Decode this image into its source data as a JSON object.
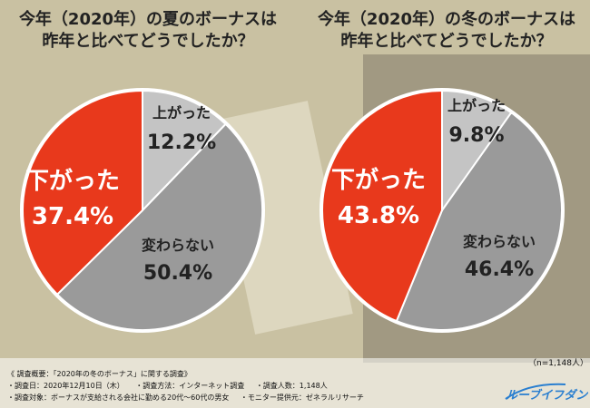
{
  "chart_data": [
    {
      "type": "pie",
      "title_lines": [
        "今年（2020年）の夏のボーナスは",
        "昨年と比べてどうでしたか？"
      ],
      "slices": [
        {
          "label": "上がった",
          "value": 12.2,
          "display": "12.2%",
          "color": "#c4c4c4"
        },
        {
          "label": "変わらない",
          "value": 50.4,
          "display": "50.4%",
          "color": "#9a9a9a"
        },
        {
          "label": "下がった",
          "value": 37.4,
          "display": "37.4%",
          "color": "#e8391c"
        }
      ]
    },
    {
      "type": "pie",
      "title_lines": [
        "今年（2020年）の冬のボーナスは",
        "昨年と比べてどうでしたか？"
      ],
      "slices": [
        {
          "label": "上がった",
          "value": 9.8,
          "display": "9.8%",
          "color": "#c4c4c4"
        },
        {
          "label": "変わらない",
          "value": 46.4,
          "display": "46.4%",
          "color": "#9a9a9a"
        },
        {
          "label": "下がった",
          "value": 43.8,
          "display": "43.8%",
          "color": "#e8391c"
        }
      ]
    }
  ],
  "survey": {
    "heading": "《 調査概要：「2020年の冬のボーナス」に関する調査》",
    "date": "・調査日：2020年12月10日（木）",
    "method": "・調査方法：インターネット調査",
    "count": "・調査人数：1,148人",
    "target": "・調査対象：ボーナスが支給される会社に勤める20代～60代の男女",
    "provider": "・モニター提供元：ゼネラルリサーチ",
    "n": "（n=1,148人）"
  },
  "brand": {
    "logo_text": "ルーブイフダン",
    "color": "#2a7fd0"
  }
}
